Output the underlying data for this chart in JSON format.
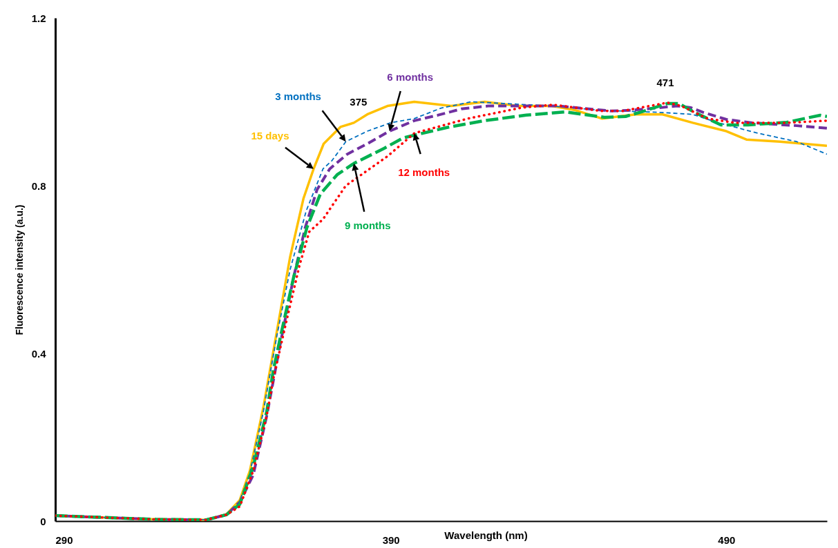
{
  "chart_data": {
    "type": "line",
    "xlabel": "Wavelength (nm)",
    "ylabel": "Fluorescence intensity (a.u.)",
    "xlim": [
      290,
      520
    ],
    "xticks": [
      290,
      390,
      490
    ],
    "ylim": [
      0,
      1.2
    ],
    "yticks": [
      0,
      0.4,
      0.8,
      1.2
    ],
    "grid": false,
    "annotations": [
      {
        "text": "375",
        "x": 375,
        "y": 0.94
      },
      {
        "text": "471",
        "x": 471,
        "y": 0.996
      }
    ],
    "series": [
      {
        "name": "15 days",
        "color": "#ffc000",
        "line_style": "solid",
        "x": [
          290,
          300,
          315,
          335,
          341,
          345,
          348,
          352,
          356,
          360,
          364,
          367,
          370,
          375,
          379,
          383,
          389,
          397,
          408,
          418,
          428,
          438,
          445,
          453,
          463,
          471,
          480,
          490,
          496,
          506,
          520
        ],
        "values": [
          0.013,
          0.01,
          0.005,
          0.003,
          0.016,
          0.05,
          0.12,
          0.27,
          0.45,
          0.63,
          0.77,
          0.84,
          0.9,
          0.94,
          0.95,
          0.97,
          0.99,
          1.0,
          0.99,
          1.0,
          0.99,
          0.99,
          0.98,
          0.96,
          0.97,
          0.97,
          0.95,
          0.93,
          0.91,
          0.905,
          0.895
        ]
      },
      {
        "name": "3 months",
        "color": "#0070c0",
        "line_style": "dashed",
        "x": [
          290,
          300,
          320,
          335,
          341,
          345,
          348,
          352,
          356,
          360,
          364.8,
          369.8,
          372.5,
          376.6,
          383,
          390,
          397,
          405,
          414,
          438,
          452,
          469.8,
          480,
          487.6,
          499.5,
          511,
          520
        ],
        "values": [
          0.013,
          0.01,
          0.004,
          0.003,
          0.015,
          0.048,
          0.115,
          0.26,
          0.44,
          0.6,
          0.74,
          0.84,
          0.86,
          0.905,
          0.93,
          0.95,
          0.96,
          0.985,
          1.0,
          0.99,
          0.98,
          0.975,
          0.97,
          0.95,
          0.925,
          0.905,
          0.875
        ]
      },
      {
        "name": "6 months",
        "color": "#7030a0",
        "line_style": "dashed",
        "x": [
          290,
          300,
          320,
          335,
          341,
          345,
          349,
          353,
          357,
          361,
          364.5,
          368,
          371.8,
          377,
          383,
          389.6,
          397,
          404,
          411,
          419,
          440,
          455.7,
          462,
          475.4,
          479.5,
          483,
          490,
          497.7,
          511,
          520
        ],
        "values": [
          0.013,
          0.01,
          0.004,
          0.003,
          0.015,
          0.045,
          0.11,
          0.25,
          0.42,
          0.58,
          0.7,
          0.79,
          0.84,
          0.875,
          0.9,
          0.93,
          0.955,
          0.968,
          0.983,
          0.99,
          0.99,
          0.978,
          0.98,
          0.99,
          0.986,
          0.975,
          0.958,
          0.95,
          0.943,
          0.937
        ]
      },
      {
        "name": "9 months",
        "color": "#00b050",
        "line_style": "dashed",
        "x": [
          290,
          300,
          320,
          335,
          341,
          345,
          349,
          353,
          355,
          357.4,
          361,
          365,
          369,
          374,
          379,
          388,
          393.7,
          407.5,
          418,
          430,
          441.9,
          453.7,
          460,
          464.7,
          472.5,
          475.9,
          480.5,
          488.4,
          496.5,
          508,
          518,
          520
        ],
        "values": [
          0.013,
          0.01,
          0.004,
          0.003,
          0.015,
          0.04,
          0.13,
          0.26,
          0.36,
          0.45,
          0.58,
          0.7,
          0.78,
          0.826,
          0.853,
          0.889,
          0.914,
          0.94,
          0.955,
          0.968,
          0.976,
          0.963,
          0.965,
          0.976,
          0.996,
          0.996,
          0.975,
          0.945,
          0.945,
          0.951,
          0.968,
          0.965
        ]
      },
      {
        "name": "12 months",
        "color": "#ff0000",
        "line_style": "dotted",
        "x": [
          290,
          300,
          320,
          335,
          341,
          345,
          349,
          353,
          355,
          358.7,
          362.8,
          365.7,
          369.8,
          376.6,
          389,
          397,
          413,
          429,
          438.5,
          452.9,
          459,
          472.5,
          476.6,
          484.4,
          492.5,
          508,
          520
        ],
        "values": [
          0.013,
          0.01,
          0.004,
          0.003,
          0.015,
          0.035,
          0.12,
          0.25,
          0.34,
          0.47,
          0.61,
          0.69,
          0.72,
          0.8,
          0.87,
          0.925,
          0.96,
          0.986,
          0.993,
          0.978,
          0.978,
          0.998,
          0.99,
          0.96,
          0.95,
          0.95,
          0.955
        ]
      }
    ]
  }
}
